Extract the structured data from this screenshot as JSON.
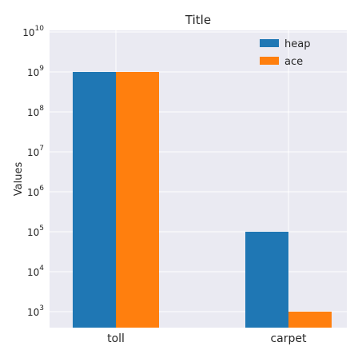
{
  "chart_data": {
    "type": "bar",
    "title": "Title",
    "xlabel": "",
    "ylabel": "Values",
    "yscale": "log",
    "ylim": [
      1000,
      10000000000
    ],
    "yticks": [
      {
        "value": 1000,
        "mantissa": "10",
        "exp": "3"
      },
      {
        "value": 10000,
        "mantissa": "10",
        "exp": "4"
      },
      {
        "value": 100000,
        "mantissa": "10",
        "exp": "5"
      },
      {
        "value": 1000000,
        "mantissa": "10",
        "exp": "6"
      },
      {
        "value": 10000000,
        "mantissa": "10",
        "exp": "7"
      },
      {
        "value": 100000000,
        "mantissa": "10",
        "exp": "8"
      },
      {
        "value": 1000000000,
        "mantissa": "10",
        "exp": "9"
      },
      {
        "value": 10000000000,
        "mantissa": "10",
        "exp": "10"
      }
    ],
    "categories": [
      "toll",
      "carpet"
    ],
    "series": [
      {
        "name": "heap",
        "color": "#1f77b4",
        "values": [
          1000000000,
          100000
        ]
      },
      {
        "name": "ace",
        "color": "#ff7f0e",
        "values": [
          1000000000,
          1000
        ]
      }
    ],
    "grid": true,
    "legend": "top-right",
    "background": "#eaeaf2"
  }
}
